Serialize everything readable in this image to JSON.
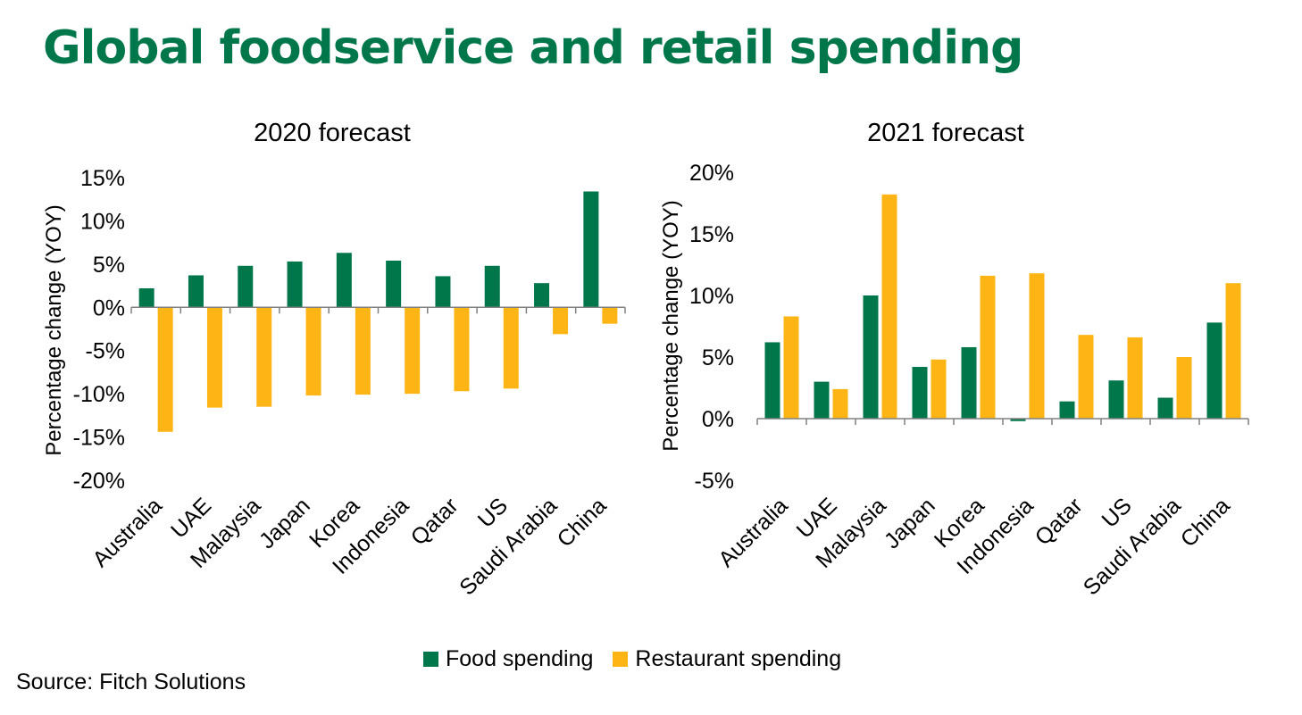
{
  "page": {
    "title": "Global foodservice and retail spending",
    "source": "Source: Fitch Solutions"
  },
  "colors": {
    "food": "#00774A",
    "restaurant": "#FDB515",
    "title": "#00774A",
    "axis": "#808080"
  },
  "legend": {
    "food_label": "Food spending",
    "restaurant_label": "Restaurant spending"
  },
  "chart_data": [
    {
      "type": "bar",
      "title": "2020 forecast",
      "ylabel": "Percentage change (YOY)",
      "ylim": [
        -20,
        15
      ],
      "yticks": [
        "15%",
        "10%",
        "5%",
        "0%",
        "-5%",
        "-10%",
        "-15%",
        "-20%"
      ],
      "ytick_values": [
        15,
        10,
        5,
        0,
        -5,
        -10,
        -15,
        -20
      ],
      "categories": [
        "Australia",
        "UAE",
        "Malaysia",
        "Japan",
        "Korea",
        "Indonesia",
        "Qatar",
        "US",
        "Saudi Arabia",
        "China"
      ],
      "series": [
        {
          "name": "Food spending",
          "values": [
            2.2,
            3.7,
            4.8,
            5.3,
            6.3,
            5.4,
            3.6,
            4.8,
            2.8,
            13.4
          ]
        },
        {
          "name": "Restaurant spending",
          "values": [
            -14.4,
            -11.6,
            -11.5,
            -10.2,
            -10.1,
            -10.0,
            -9.7,
            -9.4,
            -3.1,
            -1.9
          ]
        }
      ],
      "grid": false,
      "legend": "bottom"
    },
    {
      "type": "bar",
      "title": "2021 forecast",
      "ylabel": "Percentage change (YOY)",
      "ylim": [
        -5,
        20
      ],
      "yticks": [
        "20%",
        "15%",
        "10%",
        "5%",
        "0%",
        "-5%"
      ],
      "ytick_values": [
        20,
        15,
        10,
        5,
        0,
        -5
      ],
      "categories": [
        "Australia",
        "UAE",
        "Malaysia",
        "Japan",
        "Korea",
        "Indonesia",
        "Qatar",
        "US",
        "Saudi Arabia",
        "China"
      ],
      "series": [
        {
          "name": "Food spending",
          "values": [
            6.2,
            3.0,
            10.0,
            4.2,
            5.8,
            -0.2,
            1.4,
            3.1,
            1.7,
            7.8
          ]
        },
        {
          "name": "Restaurant spending",
          "values": [
            8.3,
            2.4,
            18.2,
            4.8,
            11.6,
            11.8,
            6.8,
            6.6,
            5.0,
            11.0
          ]
        }
      ],
      "grid": false,
      "legend": "bottom"
    }
  ]
}
